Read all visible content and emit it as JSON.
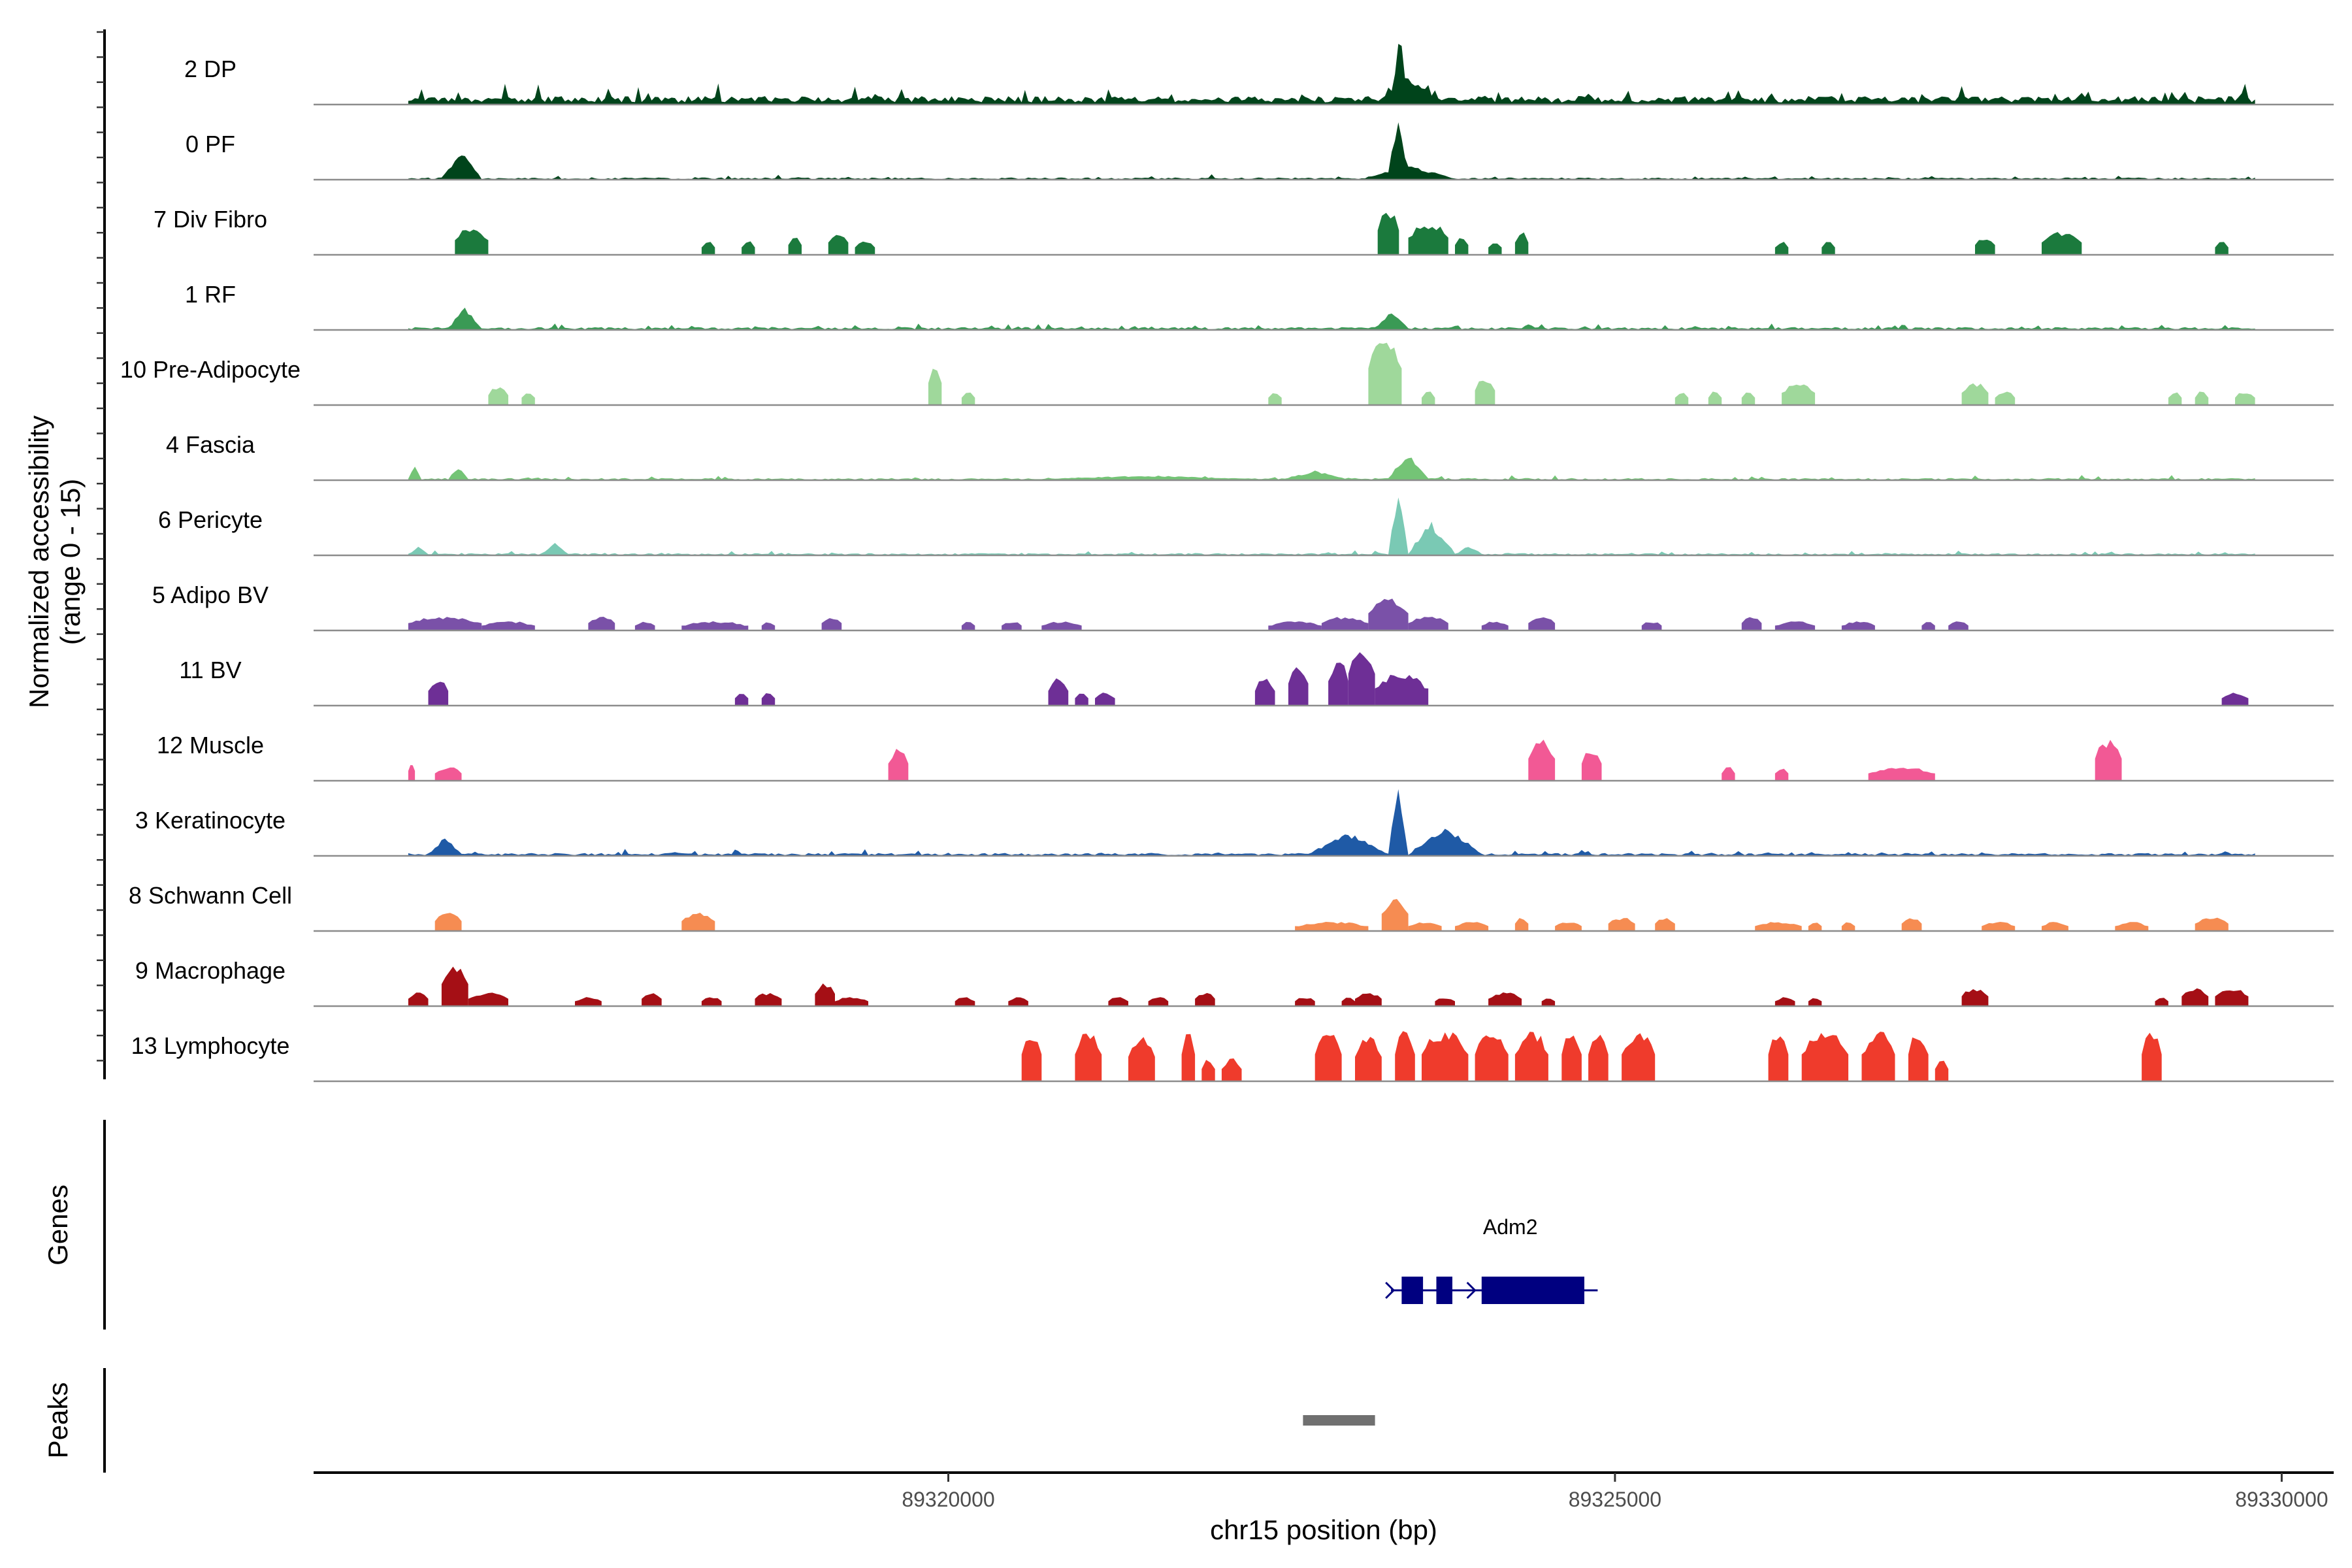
{
  "chart_data": {
    "type": "area",
    "ylabel_line1": "Normalized accessibility",
    "ylabel_line2": "(range 0 - 15)",
    "ylim": [
      0,
      15
    ],
    "xlabel": "chr15 position (bp)",
    "xlim": [
      89315240,
      89330390
    ],
    "x_ticks": [
      {
        "value": 89320000,
        "label": "89320000"
      },
      {
        "value": 89325000,
        "label": "89325000"
      },
      {
        "value": 89330000,
        "label": "89330000"
      }
    ],
    "tracks": [
      {
        "name": "2 DP",
        "color": "#00441b",
        "style": "dense",
        "base": 1.2,
        "blocks": [
          [
            89315950,
            89329800
          ]
        ],
        "peaks": [
          [
            89315950,
            89316350,
            0.6
          ],
          [
            89318400,
            89318550,
            1.5
          ],
          [
            89321000,
            89321100,
            1.2
          ],
          [
            89321900,
            89322100,
            1.4
          ],
          [
            89323320,
            89323450,
            15
          ],
          [
            89323200,
            89323700,
            6
          ],
          [
            89325000,
            89325300,
            0.5
          ],
          [
            89329100,
            89329300,
            1.5
          ]
        ]
      },
      {
        "name": "0 PF",
        "color": "#00441b",
        "style": "dense",
        "base": 0.3,
        "blocks": [
          [
            89315950,
            89329800
          ]
        ],
        "peaks": [
          [
            89316200,
            89316500,
            6
          ],
          [
            89323300,
            89323450,
            14
          ],
          [
            89323100,
            89323800,
            3
          ]
        ]
      },
      {
        "name": "7 Div Fibro",
        "color": "#1b7a3d",
        "style": "blocks",
        "blocks": [
          [
            89316300,
            89316550,
            6
          ],
          [
            89318150,
            89318250,
            3
          ],
          [
            89318450,
            89318550,
            3
          ],
          [
            89318800,
            89318900,
            4
          ],
          [
            89319100,
            89319250,
            5
          ],
          [
            89319300,
            89319450,
            3
          ],
          [
            89323220,
            89323380,
            10
          ],
          [
            89323450,
            89323750,
            7
          ],
          [
            89323800,
            89323900,
            4
          ],
          [
            89324050,
            89324150,
            3
          ],
          [
            89324250,
            89324350,
            5
          ],
          [
            89326200,
            89326300,
            3
          ],
          [
            89326550,
            89326650,
            3
          ],
          [
            89327700,
            89327850,
            4
          ],
          [
            89328200,
            89328500,
            5
          ],
          [
            89329500,
            89329600,
            3
          ]
        ]
      },
      {
        "name": "1 RF",
        "color": "#3a9a55",
        "style": "dense",
        "base": 0.4,
        "blocks": [
          [
            89315950,
            89329800
          ]
        ],
        "peaks": [
          [
            89316250,
            89316500,
            5
          ],
          [
            89323200,
            89323450,
            4
          ]
        ]
      },
      {
        "name": "10 Pre-Adipocyte",
        "color": "#9fd89b",
        "style": "blocks",
        "blocks": [
          [
            89316550,
            89316700,
            4
          ],
          [
            89316800,
            89316900,
            3
          ],
          [
            89319850,
            89319950,
            9
          ],
          [
            89320100,
            89320200,
            3
          ],
          [
            89322400,
            89322500,
            3
          ],
          [
            89323150,
            89323400,
            15
          ],
          [
            89323550,
            89323650,
            3
          ],
          [
            89323950,
            89324100,
            6
          ],
          [
            89325450,
            89325550,
            3
          ],
          [
            89325700,
            89325800,
            3
          ],
          [
            89325950,
            89326050,
            3
          ],
          [
            89326250,
            89326500,
            5
          ],
          [
            89327600,
            89327800,
            5
          ],
          [
            89327850,
            89328000,
            3
          ],
          [
            89329150,
            89329250,
            3
          ],
          [
            89329350,
            89329450,
            3
          ],
          [
            89329650,
            89329800,
            3
          ]
        ]
      },
      {
        "name": "4 Fascia",
        "color": "#74c476",
        "style": "dense",
        "base": 0.3,
        "blocks": [
          [
            89315950,
            89329800
          ]
        ],
        "peaks": [
          [
            89315950,
            89316050,
            3
          ],
          [
            89316250,
            89316400,
            3
          ],
          [
            89320500,
            89322500,
            1
          ],
          [
            89322500,
            89323000,
            2
          ],
          [
            89323300,
            89323600,
            6
          ]
        ]
      },
      {
        "name": "6 Pericyte",
        "color": "#7ac9b4",
        "style": "dense",
        "base": 0.3,
        "blocks": [
          [
            89315950,
            89329800
          ]
        ],
        "peaks": [
          [
            89315950,
            89316100,
            2
          ],
          [
            89316950,
            89317150,
            3
          ],
          [
            89323300,
            89323450,
            13
          ],
          [
            89323450,
            89323800,
            7
          ],
          [
            89323800,
            89324000,
            2
          ]
        ]
      },
      {
        "name": "5 Adipo BV",
        "color": "#7a51a8",
        "style": "blocks",
        "blocks": [
          [
            89315950,
            89316500,
            3
          ],
          [
            89316500,
            89316900,
            2
          ],
          [
            89317300,
            89317500,
            3
          ],
          [
            89317650,
            89317800,
            2
          ],
          [
            89318000,
            89318500,
            2
          ],
          [
            89318600,
            89318700,
            2
          ],
          [
            89319050,
            89319200,
            3
          ],
          [
            89320100,
            89320200,
            2
          ],
          [
            89320400,
            89320550,
            2
          ],
          [
            89320700,
            89321000,
            2
          ],
          [
            89322400,
            89322800,
            2
          ],
          [
            89322800,
            89323150,
            3
          ],
          [
            89323150,
            89323450,
            7
          ],
          [
            89323450,
            89323750,
            3
          ],
          [
            89324000,
            89324200,
            2
          ],
          [
            89324350,
            89324550,
            3
          ],
          [
            89325200,
            89325350,
            2
          ],
          [
            89325950,
            89326100,
            3
          ],
          [
            89326200,
            89326500,
            2
          ],
          [
            89326700,
            89326950,
            2
          ],
          [
            89327300,
            89327400,
            2
          ],
          [
            89327500,
            89327650,
            2
          ]
        ]
      },
      {
        "name": "11 BV",
        "color": "#6e2f96",
        "style": "blocks",
        "blocks": [
          [
            89316100,
            89316250,
            6
          ],
          [
            89318400,
            89318500,
            3
          ],
          [
            89318600,
            89318700,
            3
          ],
          [
            89320750,
            89320900,
            6
          ],
          [
            89320950,
            89321050,
            3
          ],
          [
            89321100,
            89321250,
            3
          ],
          [
            89322300,
            89322450,
            6
          ],
          [
            89322550,
            89322700,
            9
          ],
          [
            89322850,
            89323000,
            10
          ],
          [
            89323000,
            89323200,
            13
          ],
          [
            89323200,
            89323600,
            7
          ],
          [
            89329550,
            89329750,
            3
          ]
        ]
      },
      {
        "name": "12 Muscle",
        "color": "#f25995",
        "style": "blocks",
        "blocks": [
          [
            89315950,
            89316000,
            4
          ],
          [
            89316150,
            89316350,
            3
          ],
          [
            89319550,
            89319700,
            7
          ],
          [
            89324350,
            89324550,
            9
          ],
          [
            89324750,
            89324900,
            7
          ],
          [
            89325800,
            89325900,
            3
          ],
          [
            89326200,
            89326300,
            3
          ],
          [
            89326900,
            89327400,
            3
          ],
          [
            89328600,
            89328800,
            9
          ]
        ]
      },
      {
        "name": "3 Keratinocyte",
        "color": "#1f5aa6",
        "style": "dense",
        "base": 0.4,
        "blocks": [
          [
            89315950,
            89329800
          ]
        ],
        "peaks": [
          [
            89316100,
            89316350,
            4
          ],
          [
            89317850,
            89318050,
            1
          ],
          [
            89322700,
            89323300,
            5
          ],
          [
            89323300,
            89323450,
            14
          ],
          [
            89323450,
            89324000,
            6
          ],
          [
            89329500,
            89329650,
            1
          ]
        ]
      },
      {
        "name": "8 Schwann Cell",
        "color": "#f68c52",
        "style": "blocks",
        "blocks": [
          [
            89316150,
            89316350,
            4
          ],
          [
            89318000,
            89318250,
            4
          ],
          [
            89322600,
            89323150,
            2
          ],
          [
            89323250,
            89323450,
            7
          ],
          [
            89323450,
            89323700,
            2
          ],
          [
            89323800,
            89324050,
            2
          ],
          [
            89324250,
            89324350,
            3
          ],
          [
            89324550,
            89324750,
            2
          ],
          [
            89324950,
            89325150,
            3
          ],
          [
            89325300,
            89325450,
            3
          ],
          [
            89326050,
            89326400,
            2
          ],
          [
            89326450,
            89326550,
            2
          ],
          [
            89326700,
            89326800,
            2
          ],
          [
            89327150,
            89327300,
            3
          ],
          [
            89327750,
            89328000,
            2
          ],
          [
            89328200,
            89328400,
            2
          ],
          [
            89328750,
            89329000,
            2
          ],
          [
            89329350,
            89329600,
            3
          ]
        ]
      },
      {
        "name": "9 Macrophage",
        "color": "#a50f15",
        "style": "blocks",
        "blocks": [
          [
            89315950,
            89316100,
            3
          ],
          [
            89316200,
            89316400,
            9
          ],
          [
            89316400,
            89316700,
            3
          ],
          [
            89317200,
            89317400,
            2
          ],
          [
            89317700,
            89317850,
            3
          ],
          [
            89318150,
            89318300,
            2
          ],
          [
            89318550,
            89318750,
            3
          ],
          [
            89319000,
            89319150,
            5
          ],
          [
            89319150,
            89319400,
            2
          ],
          [
            89320050,
            89320200,
            2
          ],
          [
            89320450,
            89320600,
            2
          ],
          [
            89321200,
            89321350,
            2
          ],
          [
            89321500,
            89321650,
            2
          ],
          [
            89321850,
            89322000,
            3
          ],
          [
            89322600,
            89322750,
            2
          ],
          [
            89322950,
            89323050,
            2
          ],
          [
            89323050,
            89323250,
            3
          ],
          [
            89323650,
            89323800,
            2
          ],
          [
            89324050,
            89324300,
            3
          ],
          [
            89324450,
            89324550,
            2
          ],
          [
            89326200,
            89326350,
            2
          ],
          [
            89326450,
            89326550,
            2
          ],
          [
            89327600,
            89327800,
            4
          ],
          [
            89329050,
            89329150,
            2
          ],
          [
            89329250,
            89329450,
            4
          ],
          [
            89329500,
            89329750,
            4
          ]
        ]
      },
      {
        "name": "13 Lymphocyte",
        "color": "#ef3b2c",
        "style": "blocks",
        "blocks": [
          [
            89320550,
            89320700,
            11
          ],
          [
            89320950,
            89321150,
            11
          ],
          [
            89321350,
            89321550,
            10
          ],
          [
            89321750,
            89321850,
            11
          ],
          [
            89321900,
            89322000,
            5
          ],
          [
            89322050,
            89322200,
            5
          ],
          [
            89322750,
            89322950,
            11
          ],
          [
            89323050,
            89323250,
            10
          ],
          [
            89323350,
            89323500,
            11
          ],
          [
            89323550,
            89323900,
            11
          ],
          [
            89323950,
            89324200,
            11
          ],
          [
            89324250,
            89324500,
            11
          ],
          [
            89324600,
            89324750,
            11
          ],
          [
            89324800,
            89324950,
            11
          ],
          [
            89325050,
            89325300,
            11
          ],
          [
            89326150,
            89326300,
            11
          ],
          [
            89326400,
            89326750,
            11
          ],
          [
            89326850,
            89327100,
            11
          ],
          [
            89327200,
            89327350,
            11
          ],
          [
            89327400,
            89327500,
            5
          ],
          [
            89328950,
            89329100,
            11
          ]
        ]
      }
    ],
    "genes_label": "Genes",
    "gene": {
      "name": "Adm2",
      "start": 89323320,
      "end": 89324870,
      "color": "#000080",
      "exons": [
        [
          89323400,
          89323560
        ],
        [
          89323660,
          89323780
        ],
        [
          89324000,
          89324770
        ]
      ]
    },
    "peaks_label": "Peaks",
    "peak_regions": [
      {
        "start": 89322660,
        "end": 89323200,
        "color": "#707070"
      }
    ]
  }
}
